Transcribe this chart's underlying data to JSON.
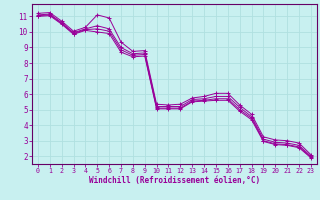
{
  "background_color": "#c8f0f0",
  "grid_color": "#b0e0e0",
  "line_color": "#990099",
  "spine_color": "#660066",
  "xlabel": "Windchill (Refroidissement éolien,°C)",
  "xlim": [
    -0.5,
    23.5
  ],
  "ylim": [
    1.5,
    11.8
  ],
  "yticks": [
    2,
    3,
    4,
    5,
    6,
    7,
    8,
    9,
    10,
    11
  ],
  "xticks": [
    0,
    1,
    2,
    3,
    4,
    5,
    6,
    7,
    8,
    9,
    10,
    11,
    12,
    13,
    14,
    15,
    16,
    17,
    18,
    19,
    20,
    21,
    22,
    23
  ],
  "lines": [
    {
      "x": [
        0,
        1,
        2,
        3,
        4,
        5,
        6,
        7,
        8,
        9,
        10,
        11,
        12,
        13,
        14,
        15,
        16,
        17,
        18,
        19,
        20,
        21,
        22,
        23
      ],
      "y": [
        11.2,
        11.25,
        10.7,
        10.05,
        10.3,
        11.1,
        10.9,
        9.35,
        8.75,
        8.8,
        5.35,
        5.3,
        5.35,
        5.75,
        5.85,
        6.05,
        6.05,
        5.3,
        4.7,
        3.25,
        3.05,
        3.0,
        2.85,
        2.1
      ]
    },
    {
      "x": [
        0,
        1,
        2,
        3,
        4,
        5,
        6,
        7,
        8,
        9,
        10,
        11,
        12,
        13,
        14,
        15,
        16,
        17,
        18,
        19,
        20,
        21,
        22,
        23
      ],
      "y": [
        11.1,
        11.15,
        10.6,
        9.95,
        10.2,
        10.4,
        10.2,
        9.0,
        8.6,
        8.65,
        5.2,
        5.2,
        5.2,
        5.65,
        5.7,
        5.85,
        5.85,
        5.15,
        4.55,
        3.1,
        2.9,
        2.85,
        2.7,
        2.0
      ]
    },
    {
      "x": [
        0,
        1,
        2,
        3,
        4,
        5,
        6,
        7,
        8,
        9,
        10,
        11,
        12,
        13,
        14,
        15,
        16,
        17,
        18,
        19,
        20,
        21,
        22,
        23
      ],
      "y": [
        11.05,
        11.1,
        10.55,
        9.9,
        10.15,
        10.2,
        10.05,
        8.85,
        8.5,
        8.55,
        5.1,
        5.1,
        5.1,
        5.55,
        5.6,
        5.7,
        5.7,
        5.0,
        4.45,
        3.0,
        2.8,
        2.75,
        2.6,
        1.95
      ]
    },
    {
      "x": [
        0,
        1,
        2,
        3,
        4,
        5,
        6,
        7,
        8,
        9,
        10,
        11,
        12,
        13,
        14,
        15,
        16,
        17,
        18,
        19,
        20,
        21,
        22,
        23
      ],
      "y": [
        11.0,
        11.05,
        10.5,
        9.85,
        10.1,
        10.0,
        9.9,
        8.7,
        8.4,
        8.45,
        5.05,
        5.05,
        5.05,
        5.5,
        5.55,
        5.6,
        5.6,
        4.9,
        4.35,
        2.95,
        2.75,
        2.7,
        2.55,
        1.9
      ]
    }
  ]
}
